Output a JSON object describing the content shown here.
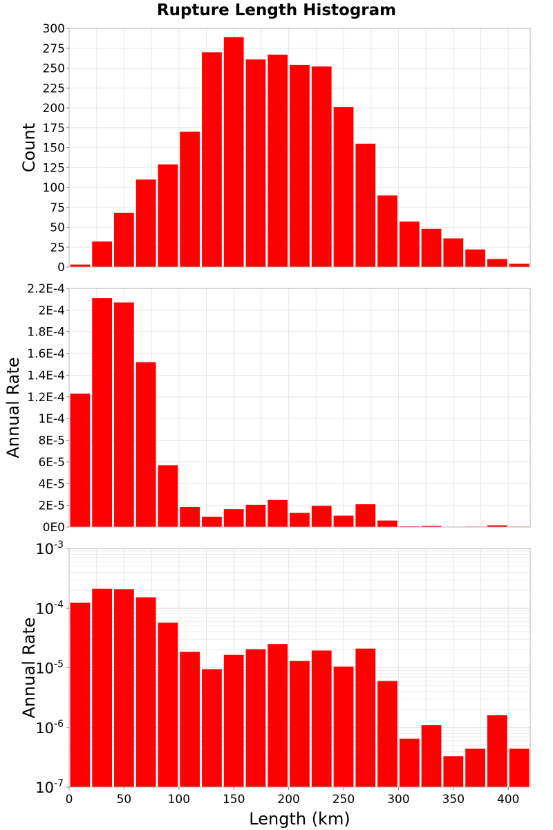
{
  "title": "Rupture Length Histogram",
  "chart_data": [
    {
      "type": "bar",
      "panel": "top",
      "ylabel": "Count",
      "xlabel": "",
      "bin_width": 20,
      "xlim": [
        0,
        420
      ],
      "ylim": [
        0,
        300
      ],
      "yscale": "linear",
      "grid": true,
      "yticks": [
        0,
        25,
        50,
        75,
        100,
        125,
        150,
        175,
        200,
        225,
        250,
        275,
        300
      ],
      "ytick_labels": [
        "0",
        "25",
        "50",
        "75",
        "100",
        "125",
        "150",
        "175",
        "200",
        "225",
        "250",
        "275",
        "300"
      ],
      "x": [
        10,
        30,
        50,
        70,
        90,
        110,
        130,
        150,
        170,
        190,
        210,
        230,
        250,
        270,
        290,
        310,
        330,
        350,
        370,
        390,
        410
      ],
      "values": [
        3,
        32,
        68,
        110,
        129,
        170,
        270,
        289,
        261,
        267,
        254,
        252,
        201,
        155,
        90,
        57,
        48,
        36,
        22,
        10,
        4
      ],
      "color": "#ff0000"
    },
    {
      "type": "bar",
      "panel": "middle",
      "ylabel": "Annual Rate",
      "xlabel": "",
      "bin_width": 20,
      "xlim": [
        0,
        420
      ],
      "ylim": [
        0,
        0.00022
      ],
      "yscale": "linear",
      "grid": true,
      "yticks": [
        0,
        2e-05,
        4e-05,
        6e-05,
        8e-05,
        0.0001,
        0.00012,
        0.00014,
        0.00016,
        0.00018,
        0.0002,
        0.00022
      ],
      "ytick_labels": [
        "0E0",
        "2E-5",
        "4E-5",
        "6E-5",
        "8E-5",
        "1E-4",
        "1.2E-4",
        "1.4E-4",
        "1.6E-4",
        "1.8E-4",
        "2E-4",
        "2.2E-4"
      ],
      "x": [
        10,
        30,
        50,
        70,
        90,
        110,
        130,
        150,
        170,
        190,
        210,
        230,
        250,
        270,
        290,
        310,
        330,
        350,
        370,
        390,
        410
      ],
      "values": [
        0.000123,
        0.000211,
        0.000207,
        0.000152,
        5.7e-05,
        1.85e-05,
        9.5e-06,
        1.65e-05,
        2.05e-05,
        2.5e-05,
        1.3e-05,
        1.95e-05,
        1.05e-05,
        2.1e-05,
        6e-06,
        6.5e-07,
        1.1e-06,
        3.3e-07,
        4.4e-07,
        1.6e-06,
        4.4e-07
      ],
      "color": "#ff0000"
    },
    {
      "type": "bar",
      "panel": "bottom",
      "ylabel": "Annual Rate",
      "xlabel": "Length (km)",
      "bin_width": 20,
      "xlim": [
        0,
        420
      ],
      "ylim": [
        1e-07,
        0.001
      ],
      "yscale": "log",
      "grid": true,
      "yticks": [
        1e-07,
        1e-06,
        1e-05,
        0.0001,
        0.001
      ],
      "ytick_labels": [
        {
          "base": "10",
          "exp": "-7"
        },
        {
          "base": "10",
          "exp": "-6"
        },
        {
          "base": "10",
          "exp": "-5"
        },
        {
          "base": "10",
          "exp": "-4"
        },
        {
          "base": "10",
          "exp": "-3"
        }
      ],
      "xticks": [
        0,
        50,
        100,
        150,
        200,
        250,
        300,
        350,
        400
      ],
      "xtick_labels": [
        "0",
        "50",
        "100",
        "150",
        "200",
        "250",
        "300",
        "350",
        "400"
      ],
      "x": [
        10,
        30,
        50,
        70,
        90,
        110,
        130,
        150,
        170,
        190,
        210,
        230,
        250,
        270,
        290,
        310,
        330,
        350,
        370,
        390,
        410
      ],
      "values": [
        0.000123,
        0.000211,
        0.000207,
        0.000152,
        5.7e-05,
        1.85e-05,
        9.5e-06,
        1.65e-05,
        2.05e-05,
        2.5e-05,
        1.3e-05,
        1.95e-05,
        1.05e-05,
        2.1e-05,
        6e-06,
        6.5e-07,
        1.1e-06,
        3.3e-07,
        4.4e-07,
        1.6e-06,
        4.4e-07
      ],
      "color": "#ff0000"
    }
  ]
}
